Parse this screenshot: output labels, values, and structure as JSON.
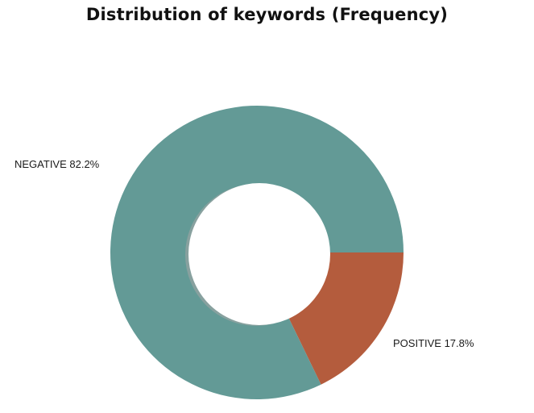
{
  "chart_data": {
    "type": "pie",
    "title": "Distribution of keywords (Frequency)",
    "slices": [
      {
        "label": "NEGATIVE",
        "value": 82.2,
        "display": "82.2%",
        "color": "#639a96"
      },
      {
        "label": "POSITIVE",
        "value": 17.8,
        "display": "17.8%",
        "color": "#b45c3d"
      }
    ],
    "donut": true,
    "legend": "none"
  }
}
